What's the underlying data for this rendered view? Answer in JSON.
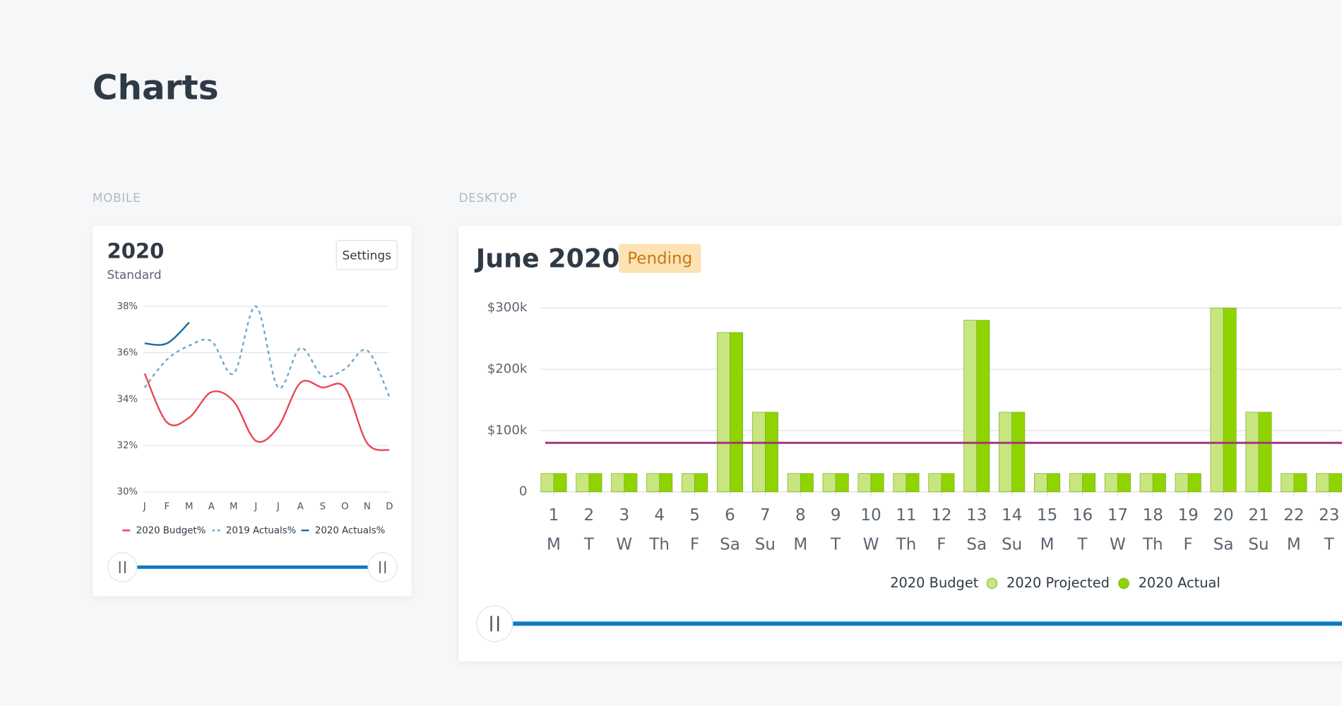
{
  "page": {
    "title": "Charts",
    "sections": [
      "MOBILE",
      "DESKTOP"
    ]
  },
  "chart_data": [
    {
      "type": "line",
      "title": "2020",
      "subtitle": "Standard",
      "button": "Settings",
      "categories": [
        "J",
        "F",
        "M",
        "A",
        "M",
        "J",
        "J",
        "A",
        "S",
        "O",
        "N",
        "D"
      ],
      "ylim": [
        30,
        38
      ],
      "yticks": [
        {
          "value": 30,
          "label": "30%"
        },
        {
          "value": 32,
          "label": "32%"
        },
        {
          "value": 34,
          "label": "34%"
        },
        {
          "value": 36,
          "label": "36%"
        },
        {
          "value": 38,
          "label": "38%"
        }
      ],
      "grid": true,
      "series": [
        {
          "name": "2020 Budget%",
          "color": "#e84855",
          "dash": false,
          "values": [
            35.1,
            33.0,
            33.2,
            34.3,
            33.9,
            32.2,
            32.8,
            34.7,
            34.5,
            34.5,
            32.1,
            31.8
          ]
        },
        {
          "name": "2019 Actuals%",
          "color": "#6fa8c8",
          "dash": true,
          "values": [
            34.5,
            35.7,
            36.3,
            36.5,
            35.1,
            38.0,
            34.5,
            36.2,
            35.0,
            35.3,
            36.1,
            34.1
          ]
        },
        {
          "name": "2020 Actuals%",
          "color": "#1a6ea0",
          "dash": false,
          "values": [
            36.4,
            36.4,
            37.3,
            null,
            null,
            null,
            null,
            null,
            null,
            null,
            null,
            null
          ]
        }
      ]
    },
    {
      "type": "bar",
      "title": "June 2020",
      "status": "Pending",
      "categories": [
        "1",
        "2",
        "3",
        "4",
        "5",
        "6",
        "7",
        "8",
        "9",
        "10",
        "11",
        "12",
        "13",
        "14",
        "15",
        "16",
        "17",
        "18",
        "19",
        "20",
        "21",
        "22",
        "23"
      ],
      "weekdays": [
        "M",
        "T",
        "W",
        "Th",
        "F",
        "Sa",
        "Su",
        "M",
        "T",
        "W",
        "Th",
        "F",
        "Sa",
        "Su",
        "M",
        "T",
        "W",
        "Th",
        "F",
        "Sa",
        "Su",
        "M",
        "T"
      ],
      "ylim": [
        0,
        300000
      ],
      "yticks": [
        0,
        {
          "value": 100000,
          "label": "$100k"
        },
        {
          "value": 200000,
          "label": "$200k"
        },
        {
          "value": 300000,
          "label": "$300k"
        }
      ],
      "grid": true,
      "budget": {
        "name": "2020 Budget",
        "color": "#a0397c",
        "value": 80000
      },
      "series": [
        {
          "name": "2020 Projected",
          "color": "#c8e67f",
          "values": [
            30000,
            30000,
            30000,
            30000,
            30000,
            260000,
            130000,
            30000,
            30000,
            30000,
            30000,
            30000,
            280000,
            130000,
            30000,
            30000,
            30000,
            30000,
            30000,
            300000,
            130000,
            30000,
            30000
          ]
        },
        {
          "name": "2020 Actual",
          "color": "#8fd400",
          "values": [
            30000,
            30000,
            30000,
            30000,
            30000,
            260000,
            130000,
            30000,
            30000,
            30000,
            30000,
            30000,
            280000,
            130000,
            30000,
            30000,
            30000,
            30000,
            30000,
            300000,
            130000,
            30000,
            30000
          ]
        }
      ]
    }
  ]
}
